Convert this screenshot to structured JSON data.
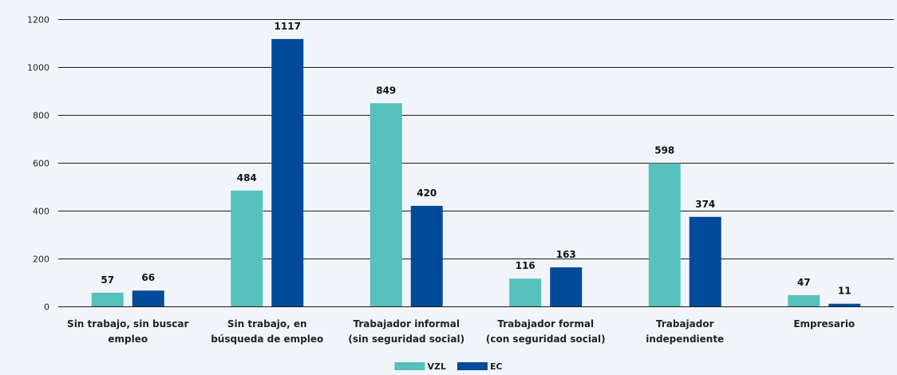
{
  "chart_data": {
    "type": "bar",
    "categories": [
      [
        "Sin trabajo, sin buscar",
        "empleo"
      ],
      [
        "Sin trabajo, en",
        "búsqueda de empleo"
      ],
      [
        "Trabajador informal",
        "(sin seguridad social)"
      ],
      [
        "Trabajador formal",
        "(con seguridad social)"
      ],
      [
        "Trabajador",
        "independiente"
      ],
      [
        "Empresario"
      ]
    ],
    "series": [
      {
        "name": "VZL",
        "color": "#56c0bd",
        "values": [
          57,
          484,
          849,
          116,
          598,
          47
        ]
      },
      {
        "name": "EC",
        "color": "#024a9a",
        "values": [
          66,
          1117,
          420,
          163,
          374,
          11
        ]
      }
    ],
    "title": "",
    "xlabel": "",
    "ylabel": "",
    "ylim": [
      0,
      1200
    ],
    "yticks": [
      0,
      200,
      400,
      600,
      800,
      1000,
      1200
    ],
    "grid": true,
    "legend_position": "bottom-center"
  }
}
